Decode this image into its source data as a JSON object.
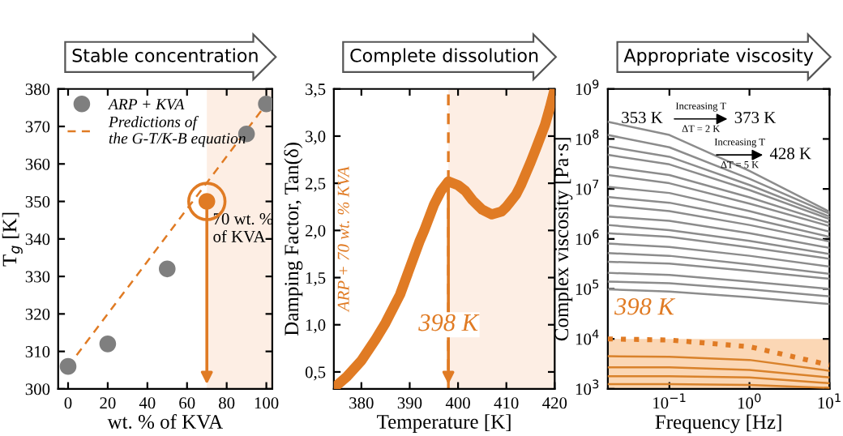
{
  "chart_data": [
    {
      "type": "scatter",
      "title": "Stable concentration",
      "xlabel": "wt. % of KVA",
      "ylabel": "T$_{g}$ [K]",
      "xlim": [
        -5,
        103
      ],
      "xticks": [
        0,
        20,
        40,
        60,
        80,
        100
      ],
      "ylim": [
        300,
        380
      ],
      "yticks": [
        300,
        310,
        320,
        330,
        340,
        350,
        360,
        370,
        380
      ],
      "grid": false,
      "legend": "top left",
      "series": [
        {
          "name": "ARP + KVA",
          "type": "scatter",
          "marker": "circle",
          "x": [
            0,
            20,
            50,
            70,
            90,
            100
          ],
          "values": [
            306,
            312,
            332,
            350,
            368,
            376
          ],
          "colors": [
            "#7f7f7f",
            "#7f7f7f",
            "#7f7f7f",
            "#e07b24",
            "#7f7f7f",
            "#7f7f7f"
          ]
        },
        {
          "name": "Predictions of\nthe G-T/K-B equation",
          "type": "line",
          "line_style": "dashed",
          "color": "#e07b24",
          "x": [
            0,
            100
          ],
          "values": [
            306,
            376
          ]
        }
      ],
      "bands": [
        {
          "axis": "x",
          "from": 70,
          "to": 103,
          "color": "#fdeee4"
        }
      ],
      "annotations": [
        {
          "text": "70 wt. %\nof KVA",
          "x": 70,
          "y": 350
        }
      ]
    },
    {
      "type": "line",
      "title": "Complete dissolution",
      "xlabel": "Temperature [K]",
      "ylabel": "Damping Factor, Tan(δ)",
      "xlim": [
        374.3,
        420
      ],
      "xticks": [
        380,
        390,
        400,
        410,
        420
      ],
      "ylim": [
        0.32,
        3.5
      ],
      "yticks": [
        {
          "value": 0.5,
          "label": "0,5"
        },
        {
          "value": 1.0,
          "label": "1,0"
        },
        {
          "value": 1.5,
          "label": "1,5"
        },
        {
          "value": 2.0,
          "label": "2,0"
        },
        {
          "value": 2.5,
          "label": "2,5"
        },
        {
          "value": 3.0,
          "label": "3,0"
        },
        {
          "value": 3.5,
          "label": "3,5"
        }
      ],
      "grid": false,
      "series": [
        {
          "color": "#e07b24",
          "x": [
            374.3,
            377,
            380,
            383,
            385,
            388,
            390,
            392,
            393,
            395,
            396.5,
            398,
            400,
            401.5,
            403,
            405,
            407,
            409,
            410,
            412,
            413,
            415,
            416,
            418,
            419,
            420
          ],
          "values": [
            0.33,
            0.45,
            0.62,
            0.85,
            1.02,
            1.32,
            1.6,
            1.88,
            2.0,
            2.27,
            2.42,
            2.52,
            2.48,
            2.42,
            2.32,
            2.22,
            2.17,
            2.2,
            2.25,
            2.38,
            2.48,
            2.72,
            2.85,
            3.12,
            3.3,
            3.5
          ]
        }
      ],
      "ref_lines": [
        {
          "axis": "x",
          "value": 398,
          "color": "#e07b24",
          "line_style": "dashed"
        }
      ],
      "bands": [
        {
          "axis": "x",
          "from": 398,
          "to": 420,
          "color": "#fdeee4"
        }
      ],
      "annotations": [
        {
          "text": "398 K",
          "x": 398,
          "y": 1.0
        },
        "ARP + 70 wt. % KVA"
      ]
    },
    {
      "type": "line",
      "title": "Appropriate viscosity",
      "xlabel": "Frequency [Hz]",
      "ylabel": "Complex viscosity [Pa·s]",
      "log": "xy",
      "xlim": [
        0.017,
        10
      ],
      "xticks": [
        {
          "value": 0.1,
          "label": "10$^{−1}$"
        },
        {
          "value": 1,
          "label": "10$^{0}$"
        },
        {
          "value": 10,
          "label": "10$^{1}$"
        }
      ],
      "ylim": [
        1000,
        1000000000
      ],
      "yticks": [
        {
          "value": 1000,
          "label": "10$^{3}$"
        },
        {
          "value": 10000,
          "label": "10$^{4}$"
        },
        {
          "value": 100000,
          "label": "10$^{5}$"
        },
        {
          "value": 1000000,
          "label": "10$^{6}$"
        },
        {
          "value": 10000000,
          "label": "10$^{7}$"
        },
        {
          "value": 100000000,
          "label": "10$^{8}$"
        },
        {
          "value": 1000000000,
          "label": "10$^{9}$"
        }
      ],
      "grid": false,
      "x": [
        0.017,
        0.1,
        1,
        10
      ],
      "series": [
        {
          "color": "#8c8c8c",
          "values": [
            220000000.0,
            120000000.0,
            23000000.0,
            3500000.0
          ]
        },
        {
          "color": "#8c8c8c",
          "values": [
            120000000.0,
            68000000.0,
            16000000.0,
            3200000.0
          ]
        },
        {
          "color": "#8c8c8c",
          "values": [
            71000000.0,
            44000000.0,
            12000000.0,
            2800000.0
          ]
        },
        {
          "color": "#8c8c8c",
          "values": [
            48000000.0,
            31000000.0,
            9500000.0,
            2500000.0
          ]
        },
        {
          "color": "#8c8c8c",
          "values": [
            28000000.0,
            19000000.0,
            6800000.0,
            2100000.0
          ]
        },
        {
          "color": "#8c8c8c",
          "values": [
            19000000.0,
            13000000.0,
            5100000.0,
            1800000.0
          ]
        },
        {
          "color": "#8c8c8c",
          "values": [
            11000000.0,
            8300000.0,
            3600000.0,
            1400000.0
          ]
        },
        {
          "color": "#8c8c8c",
          "values": [
            6900000.0,
            5300000.0,
            2600000.0,
            1100000.0
          ]
        },
        {
          "color": "#8c8c8c",
          "values": [
            4700000.0,
            3600000.0,
            1900000.0,
            890000.0
          ]
        },
        {
          "color": "#8c8c8c",
          "values": [
            2800000.0,
            2300000.0,
            1300000.0,
            660000.0
          ]
        },
        {
          "color": "#8c8c8c",
          "values": [
            1900000.0,
            1500000.0,
            910000.0,
            500000.0
          ]
        },
        {
          "color": "#8c8c8c",
          "values": [
            1300000.0,
            1100000.0,
            680000.0,
            400000.0
          ]
        },
        {
          "color": "#8c8c8c",
          "values": [
            810000.0,
            690000.0,
            460000.0,
            280000.0
          ]
        },
        {
          "color": "#8c8c8c",
          "values": [
            520000.0,
            460000.0,
            310000.0,
            200000.0
          ]
        },
        {
          "color": "#8c8c8c",
          "values": [
            350000.0,
            320000.0,
            230000.0,
            160000.0
          ]
        },
        {
          "color": "#8c8c8c",
          "values": [
            210000.0,
            190000.0,
            140000.0,
            100000.0
          ]
        },
        {
          "color": "#8c8c8c",
          "values": [
            140000.0,
            130000.0,
            98000.0,
            71000.0
          ]
        },
        {
          "color": "#8c8c8c",
          "values": [
            98000.0,
            89000.0,
            68000.0,
            50000.0
          ]
        },
        {
          "color": "#e07b24",
          "line_style": "dotted",
          "values": [
            10000.0,
            9500.0,
            7000.0,
            3000.0
          ]
        },
        {
          "color": "#d9822b",
          "values": [
            4500.0,
            4400.0,
            3800.0,
            2300.0
          ]
        },
        {
          "color": "#d9822b",
          "values": [
            2700.0,
            2700.0,
            2400.0,
            1700.0
          ]
        },
        {
          "color": "#d9822b",
          "values": [
            1800.0,
            1800.0,
            1700.0,
            1300.0
          ]
        },
        {
          "color": "#d9822b",
          "values": [
            1250.0,
            1250.0,
            1200.0,
            1050.0
          ]
        }
      ],
      "bands": [
        {
          "axis": "y",
          "from": 1000,
          "to": 10000,
          "color": "#fbd7b5"
        }
      ],
      "annotations": [
        "398 K",
        "353 K",
        "Increasing T",
        "ΔT = 2 K",
        "373 K",
        "Increasing T",
        "ΔT = 5 K",
        "428 K"
      ]
    }
  ]
}
